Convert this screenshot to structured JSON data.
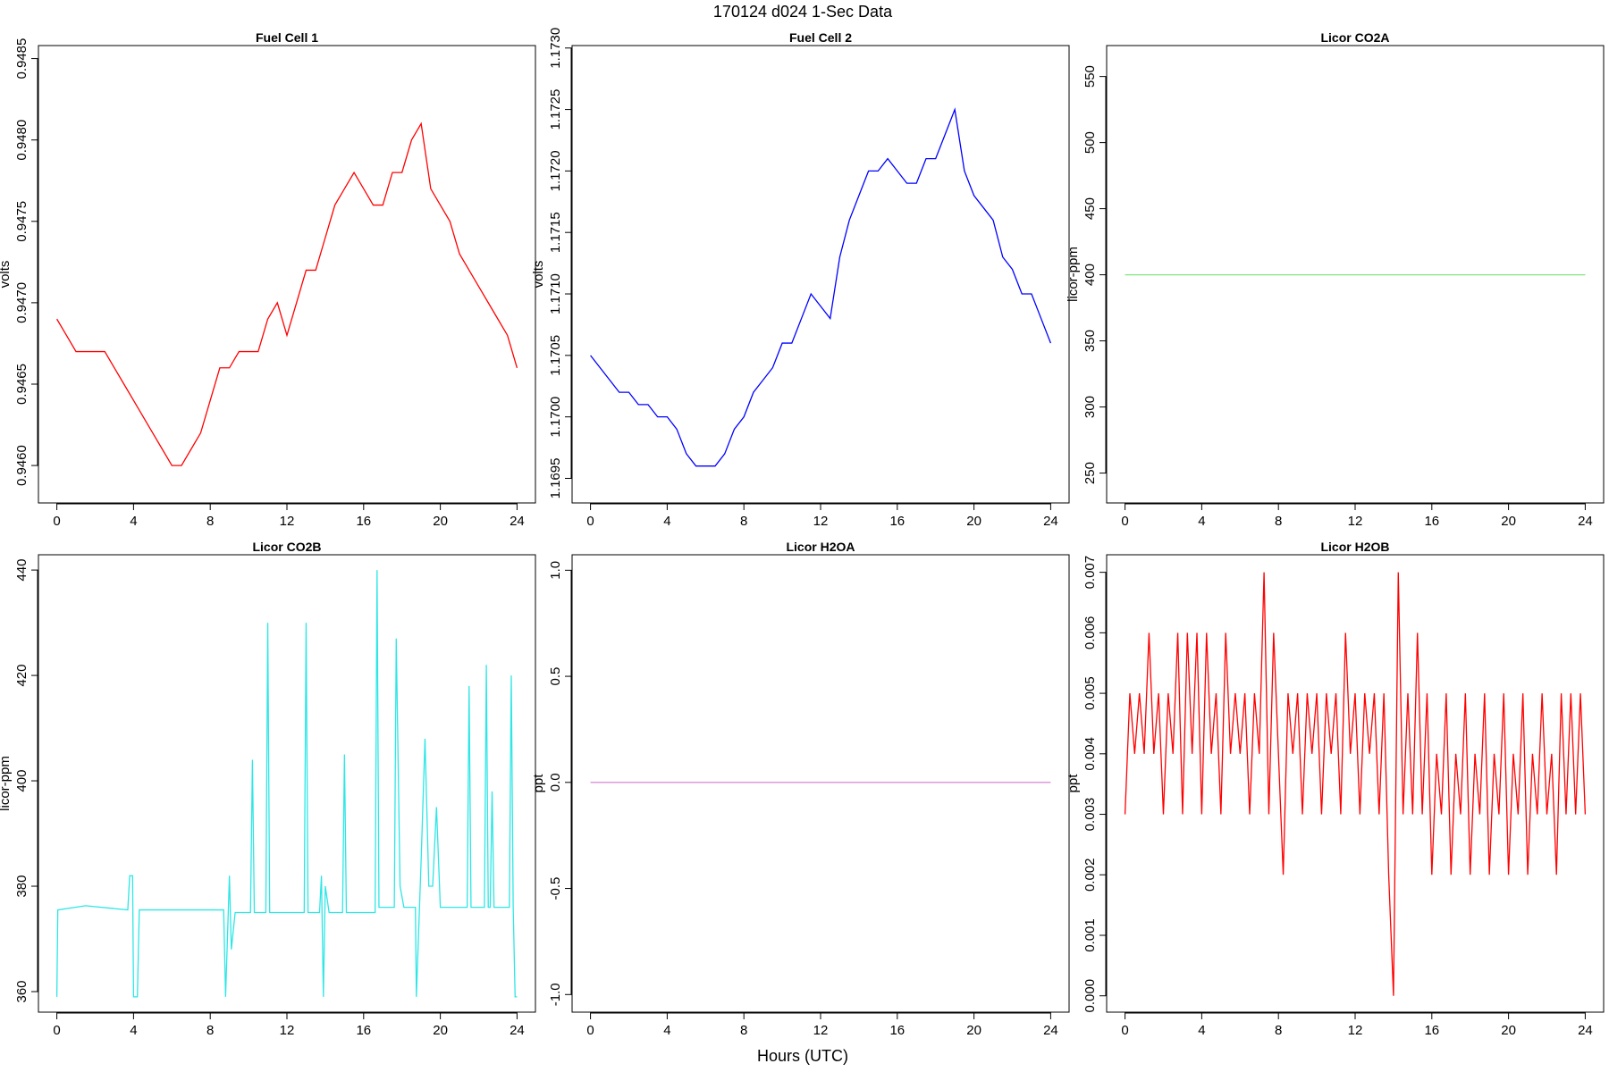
{
  "title": "170124   d024   1-Sec Data",
  "xlabel": "Hours (UTC)",
  "chart_data": [
    {
      "type": "line",
      "title": "Fuel Cell 1",
      "ylabel": "volts",
      "color": "#ff0000",
      "x": [
        0,
        0.5,
        1,
        1.5,
        2,
        2.5,
        3,
        3.5,
        4,
        4.5,
        5,
        5.5,
        6,
        6.5,
        7,
        7.5,
        8,
        8.5,
        9,
        9.5,
        10,
        10.5,
        11,
        11.5,
        12,
        12.5,
        13,
        13.5,
        14,
        14.5,
        15,
        15.5,
        16,
        16.5,
        17,
        17.5,
        18,
        18.5,
        19,
        19.5,
        20,
        20.5,
        21,
        21.5,
        22,
        22.5,
        23,
        23.5,
        24
      ],
      "values": [
        0.9469,
        0.9468,
        0.9467,
        0.9467,
        0.9467,
        0.9467,
        0.9466,
        0.9465,
        0.9464,
        0.9463,
        0.9462,
        0.9461,
        0.946,
        0.946,
        0.9461,
        0.9462,
        0.9464,
        0.9466,
        0.9466,
        0.9467,
        0.9467,
        0.9467,
        0.9469,
        0.947,
        0.9468,
        0.947,
        0.9472,
        0.9472,
        0.9474,
        0.9476,
        0.9477,
        0.9478,
        0.9477,
        0.9476,
        0.9476,
        0.9478,
        0.9478,
        0.948,
        0.9481,
        0.9477,
        0.9476,
        0.9475,
        0.9473,
        0.9472,
        0.9471,
        0.947,
        0.9469,
        0.9468,
        0.9466
      ],
      "xlim": [
        -0.96,
        24.96
      ],
      "xticks": [
        0,
        4,
        8,
        12,
        16,
        20,
        24
      ],
      "ylim": [
        0.94577,
        0.94858
      ],
      "yticks": [
        {
          "value": 0.946,
          "label": "0.9460"
        },
        0.9465,
        {
          "value": 0.947,
          "label": "0.9470"
        },
        0.9475,
        {
          "value": 0.948,
          "label": "0.9480"
        },
        0.9485
      ]
    },
    {
      "type": "line",
      "title": "Fuel Cell 2",
      "ylabel": "volts",
      "color": "#0000ff",
      "x": [
        0,
        0.5,
        1,
        1.5,
        2,
        2.5,
        3,
        3.5,
        4,
        4.5,
        5,
        5.5,
        6,
        6.5,
        7,
        7.5,
        8,
        8.5,
        9,
        9.5,
        10,
        10.5,
        11,
        11.5,
        12,
        12.5,
        13,
        13.5,
        14,
        14.5,
        15,
        15.5,
        16,
        16.5,
        17,
        17.5,
        18,
        18.5,
        19,
        19.5,
        20,
        20.5,
        21,
        21.5,
        22,
        22.5,
        23,
        23.5,
        24
      ],
      "values": [
        1.1705,
        1.1704,
        1.1703,
        1.1702,
        1.1702,
        1.1701,
        1.1701,
        1.17,
        1.17,
        1.1699,
        1.1697,
        1.1696,
        1.1696,
        1.1696,
        1.1697,
        1.1699,
        1.17,
        1.1702,
        1.1703,
        1.1704,
        1.1706,
        1.1706,
        1.1708,
        1.171,
        1.1709,
        1.1708,
        1.1713,
        1.1716,
        1.1718,
        1.172,
        1.172,
        1.1721,
        1.172,
        1.1719,
        1.1719,
        1.1721,
        1.1721,
        1.1723,
        1.1725,
        1.172,
        1.1718,
        1.1717,
        1.1716,
        1.1713,
        1.1712,
        1.171,
        1.171,
        1.1708,
        1.1706
      ],
      "xlim": [
        -0.96,
        24.96
      ],
      "xticks": [
        0,
        4,
        8,
        12,
        16,
        20,
        24
      ],
      "ylim": [
        1.1693,
        1.17302
      ],
      "yticks": [
        1.1695,
        {
          "value": 1.17,
          "label": "1.1700"
        },
        1.1705,
        {
          "value": 1.171,
          "label": "1.1710"
        },
        1.1715,
        {
          "value": 1.172,
          "label": "1.1720"
        },
        1.1725,
        {
          "value": 1.173,
          "label": "1.1730"
        }
      ]
    },
    {
      "type": "line",
      "title": "Licor CO2A",
      "ylabel": "licor-ppm",
      "color": "#7ee87e",
      "x": [
        0,
        24
      ],
      "values": [
        400,
        400
      ],
      "xlim": [
        -0.96,
        24.96
      ],
      "xticks": [
        0,
        4,
        8,
        12,
        16,
        20,
        24
      ],
      "ylim": [
        227.4,
        573.4
      ],
      "yticks": [
        250,
        300,
        350,
        400,
        450,
        500,
        550
      ]
    },
    {
      "type": "line",
      "title": "Licor CO2B",
      "ylabel": "licor-ppm",
      "color": "#2ee6e6",
      "x": [
        0,
        0.05,
        1.5,
        3.7,
        3.8,
        3.95,
        4.0,
        4.2,
        4.3,
        8.7,
        8.8,
        9.0,
        9.1,
        9.3,
        10.1,
        10.2,
        10.3,
        10.9,
        11.0,
        11.1,
        12.9,
        13.0,
        13.1,
        13.7,
        13.8,
        13.9,
        14.0,
        14.2,
        14.9,
        15.0,
        15.1,
        16.6,
        16.7,
        16.8,
        17.6,
        17.7,
        17.9,
        18.1,
        18.7,
        18.75,
        19.0,
        19.2,
        19.4,
        19.6,
        19.8,
        20.0,
        21.4,
        21.5,
        21.6,
        22.3,
        22.4,
        22.5,
        22.6,
        22.7,
        22.8,
        23.4,
        23.6,
        23.7,
        23.8,
        23.9,
        24.0
      ],
      "values": [
        359,
        375.5,
        376.3,
        375.5,
        382,
        382,
        359,
        359,
        375.5,
        375.5,
        359,
        382,
        368,
        375,
        375,
        404,
        375,
        375,
        430,
        375,
        375,
        430,
        375,
        375,
        382,
        359,
        380,
        375,
        375,
        405,
        375,
        375,
        440,
        376,
        376,
        427,
        380,
        376,
        376,
        359,
        385,
        408,
        380,
        380,
        395,
        376,
        376,
        418,
        376,
        376,
        422,
        376,
        376,
        398,
        376,
        376,
        376,
        420,
        376,
        359,
        359
      ],
      "xlim": [
        -0.96,
        24.96
      ],
      "xticks": [
        0,
        4,
        8,
        12,
        16,
        20,
        24
      ],
      "ylim": [
        356.1,
        442.9
      ],
      "yticks": [
        360,
        380,
        400,
        420,
        440
      ]
    },
    {
      "type": "line",
      "title": "Licor H2OA",
      "ylabel": "ppt",
      "color": "#d890d8",
      "x": [
        0,
        24
      ],
      "values": [
        0,
        0
      ],
      "xlim": [
        -0.96,
        24.96
      ],
      "xticks": [
        0,
        4,
        8,
        12,
        16,
        20,
        24
      ],
      "ylim": [
        -1.083,
        1.073
      ],
      "yticks": [
        {
          "value": -1,
          "label": "-1.0"
        },
        -0.5,
        {
          "value": 0,
          "label": "0.0"
        },
        0.5,
        {
          "value": 1,
          "label": "1.0"
        }
      ]
    },
    {
      "type": "line",
      "title": "Licor H2OB",
      "ylabel": "ppt",
      "color": "#ff0000",
      "x": [
        0,
        0.25,
        0.5,
        0.75,
        1,
        1.25,
        1.5,
        1.75,
        2,
        2.25,
        2.5,
        2.75,
        3,
        3.25,
        3.5,
        3.75,
        4,
        4.25,
        4.5,
        4.75,
        5,
        5.25,
        5.5,
        5.75,
        6,
        6.25,
        6.5,
        6.75,
        7,
        7.25,
        7.5,
        7.75,
        8,
        8.25,
        8.5,
        8.75,
        9,
        9.25,
        9.5,
        9.75,
        10,
        10.25,
        10.5,
        10.75,
        11,
        11.25,
        11.5,
        11.75,
        12,
        12.25,
        12.5,
        12.75,
        13,
        13.25,
        13.5,
        13.75,
        14,
        14.25,
        14.5,
        14.75,
        15,
        15.25,
        15.5,
        15.75,
        16,
        16.25,
        16.5,
        16.75,
        17,
        17.25,
        17.5,
        17.75,
        18,
        18.25,
        18.5,
        18.75,
        19,
        19.25,
        19.5,
        19.75,
        20,
        20.25,
        20.5,
        20.75,
        21,
        21.25,
        21.5,
        21.75,
        22,
        22.25,
        22.5,
        22.75,
        23,
        23.25,
        23.5,
        23.75,
        24
      ],
      "values": [
        0.003,
        0.005,
        0.004,
        0.005,
        0.004,
        0.006,
        0.004,
        0.005,
        0.003,
        0.005,
        0.004,
        0.006,
        0.003,
        0.006,
        0.004,
        0.006,
        0.003,
        0.006,
        0.004,
        0.005,
        0.003,
        0.006,
        0.004,
        0.005,
        0.004,
        0.005,
        0.003,
        0.005,
        0.004,
        0.007,
        0.003,
        0.006,
        0.004,
        0.002,
        0.005,
        0.004,
        0.005,
        0.003,
        0.005,
        0.004,
        0.005,
        0.003,
        0.005,
        0.004,
        0.005,
        0.003,
        0.006,
        0.004,
        0.005,
        0.003,
        0.005,
        0.004,
        0.005,
        0.003,
        0.005,
        0.002,
        0.0,
        0.007,
        0.003,
        0.005,
        0.003,
        0.006,
        0.003,
        0.005,
        0.002,
        0.004,
        0.003,
        0.005,
        0.002,
        0.004,
        0.003,
        0.005,
        0.002,
        0.004,
        0.003,
        0.005,
        0.002,
        0.004,
        0.003,
        0.005,
        0.002,
        0.004,
        0.003,
        0.005,
        0.002,
        0.004,
        0.003,
        0.005,
        0.003,
        0.004,
        0.002,
        0.005,
        0.003,
        0.005,
        0.003,
        0.005,
        0.003
      ],
      "xlim": [
        -0.96,
        24.96
      ],
      "xticks": [
        0,
        4,
        8,
        12,
        16,
        20,
        24
      ],
      "ylim": [
        -0.00027,
        0.00729
      ],
      "yticks": [
        {
          "value": 0,
          "label": "0.000"
        },
        {
          "value": 0.001,
          "label": "0.001"
        },
        {
          "value": 0.002,
          "label": "0.002"
        },
        {
          "value": 0.003,
          "label": "0.003"
        },
        {
          "value": 0.004,
          "label": "0.004"
        },
        {
          "value": 0.005,
          "label": "0.005"
        },
        {
          "value": 0.006,
          "label": "0.006"
        },
        {
          "value": 0.007,
          "label": "0.007"
        }
      ]
    }
  ]
}
